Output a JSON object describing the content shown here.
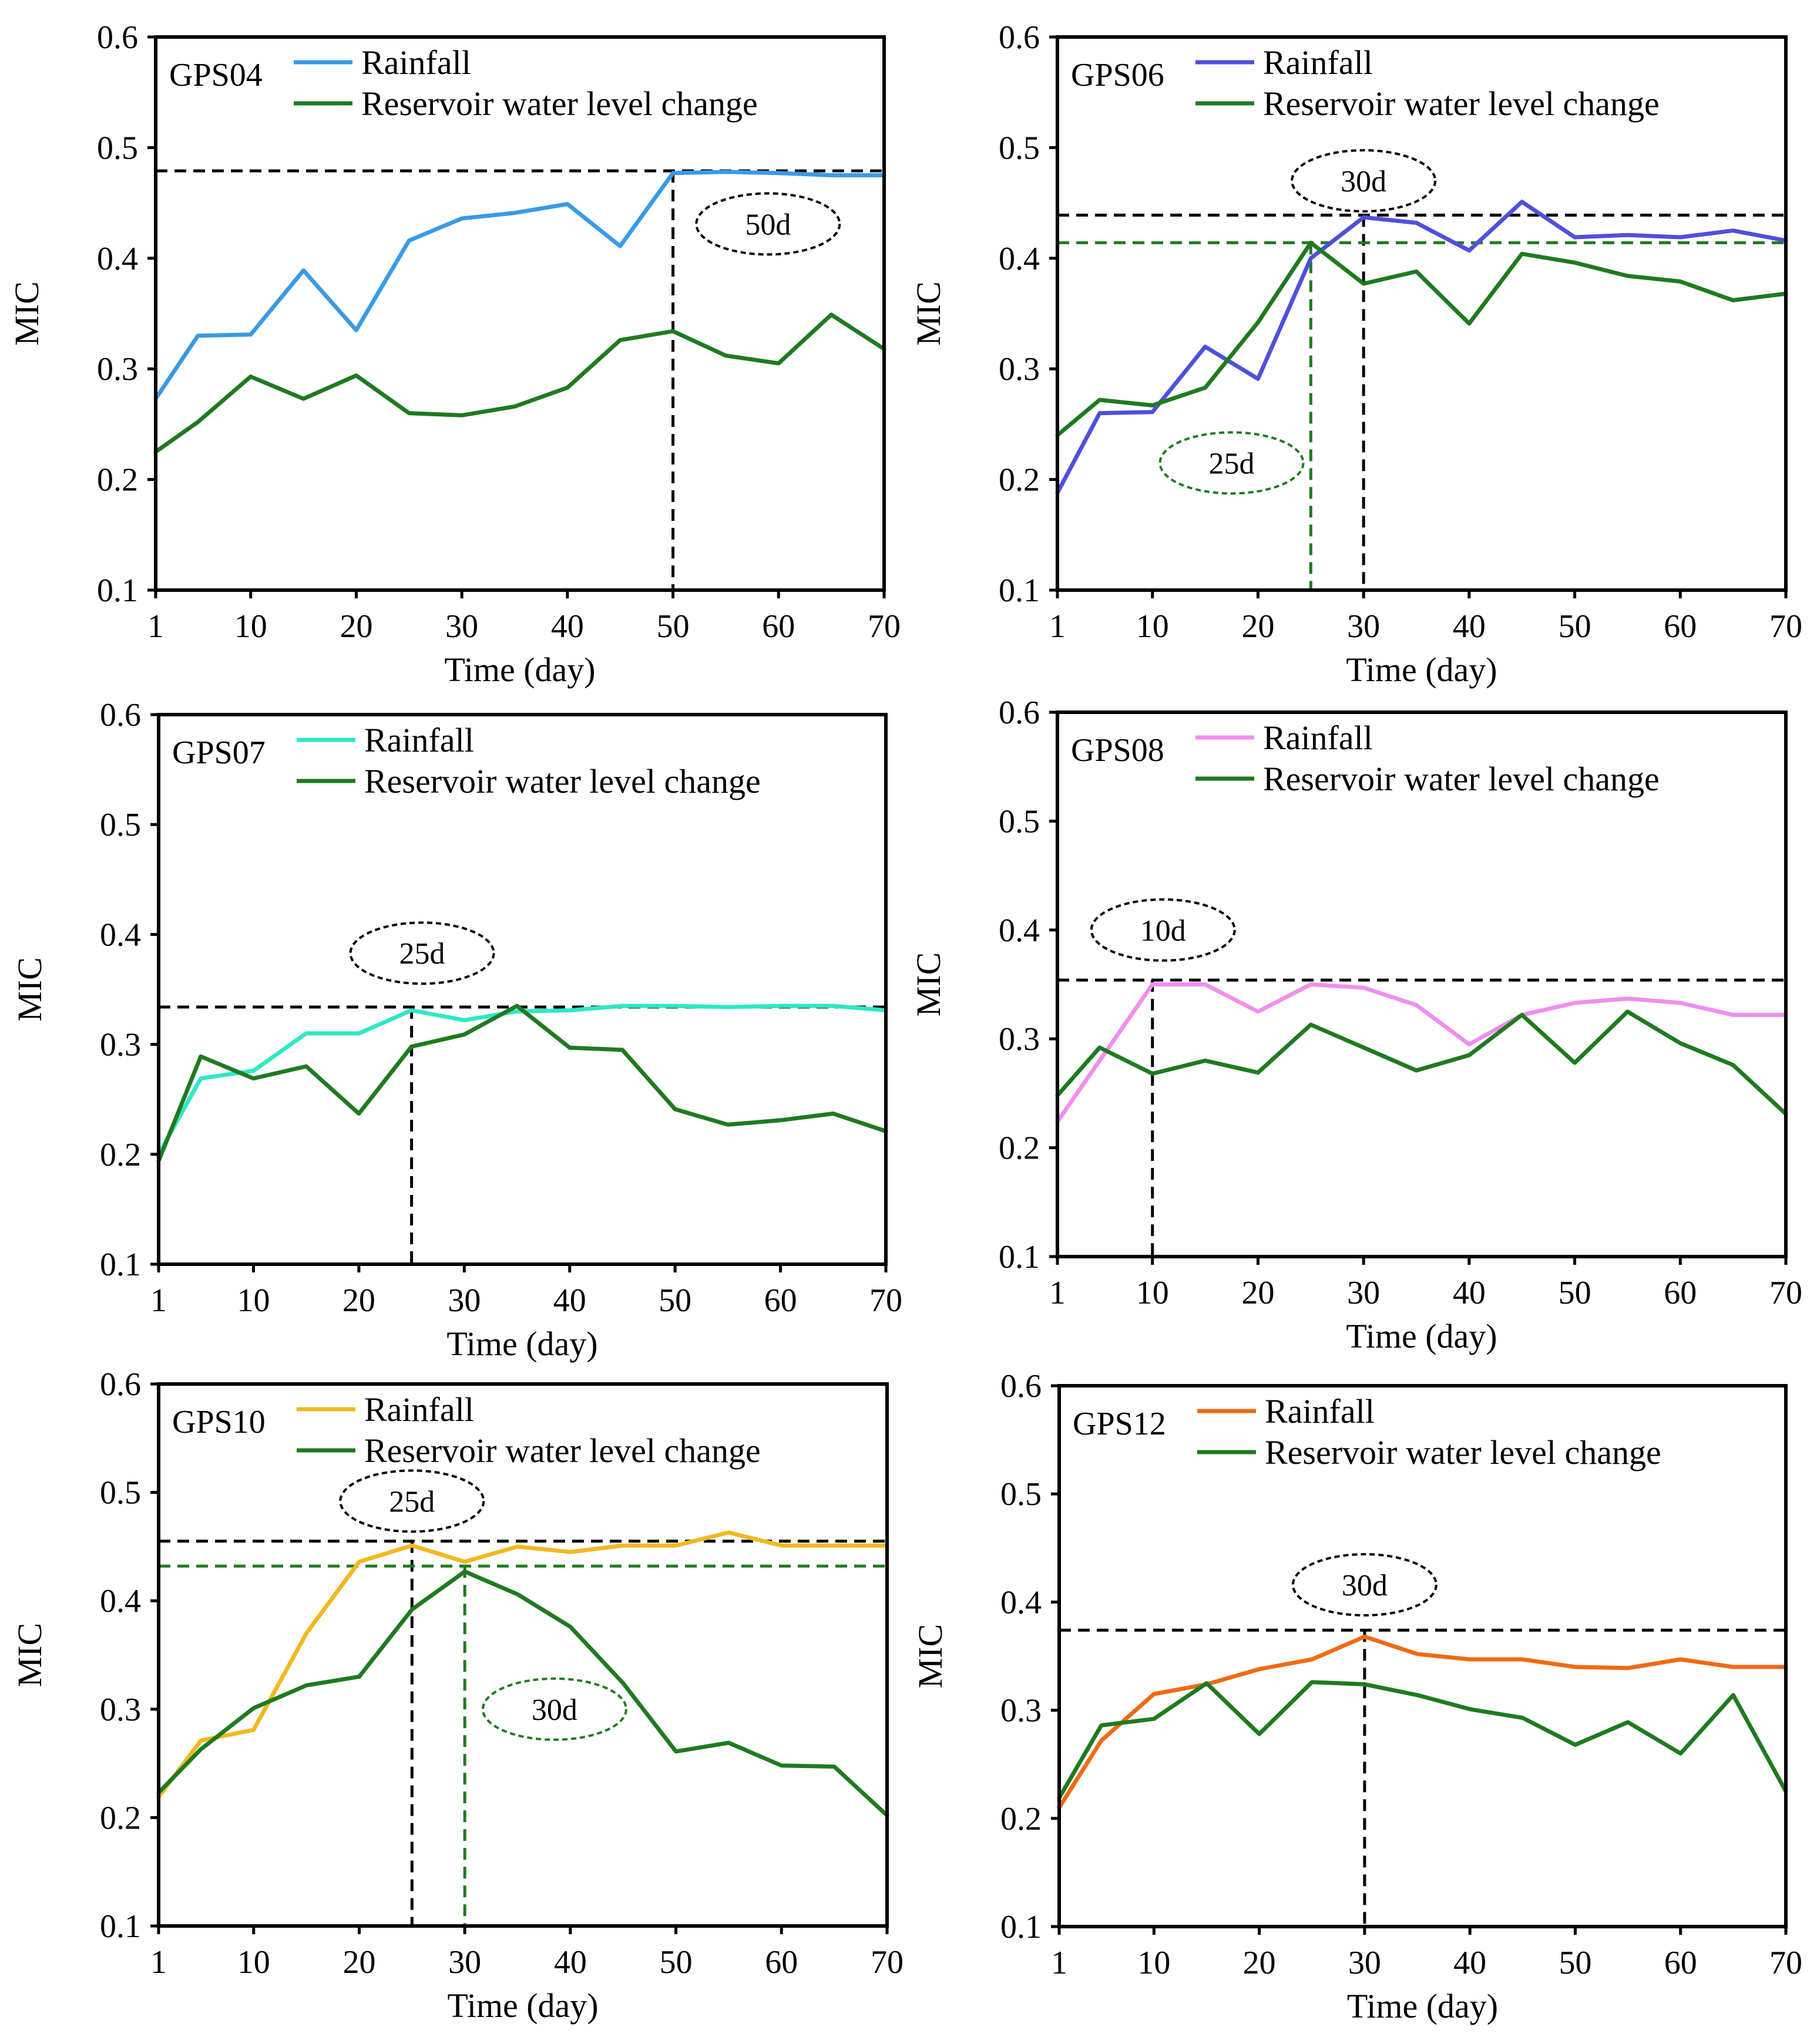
{
  "colors": {
    "axis": "#000000",
    "reservoir": "#1f7a1f",
    "ref_black": "#000000",
    "ref_green": "#1f7a1f"
  },
  "chart_data": [
    {
      "type": "line",
      "panel_label": "GPS04",
      "xlabel": "Time (day)",
      "ylabel": "MIC",
      "xlim": [
        1,
        70
      ],
      "ylim": [
        0.1,
        0.6
      ],
      "yticks": [
        "0.1",
        "0.2",
        "0.3",
        "0.4",
        "0.5",
        "0.6"
      ],
      "xticks": [
        {
          "v": 1,
          "label": "1"
        },
        {
          "v": 10,
          "label": "10"
        },
        {
          "v": 20,
          "label": "20"
        },
        {
          "v": 30,
          "label": "30"
        },
        {
          "v": 40,
          "label": "40"
        },
        {
          "v": 50,
          "label": "50"
        },
        {
          "v": 60,
          "label": "60"
        },
        {
          "v": 70,
          "label": "70"
        }
      ],
      "x": [
        1,
        5,
        10,
        15,
        20,
        25,
        30,
        35,
        40,
        45,
        50,
        55,
        60,
        65,
        70
      ],
      "series": [
        {
          "name": "Rainfall",
          "color": "#3a9ae6",
          "values": [
            0.273,
            0.33,
            0.331,
            0.389,
            0.335,
            0.416,
            0.436,
            0.441,
            0.449,
            0.411,
            0.477,
            0.478,
            0.477,
            0.475,
            0.475
          ]
        },
        {
          "name": "Reservoir water level change",
          "color": "#1f7a1f",
          "values": [
            0.225,
            0.252,
            0.293,
            0.273,
            0.294,
            0.26,
            0.258,
            0.266,
            0.283,
            0.326,
            0.334,
            0.312,
            0.305,
            0.349,
            0.318
          ]
        }
      ],
      "markers": [
        {
          "color": "black",
          "x": 50,
          "y": 0.479,
          "label": "50d",
          "label_x": 59,
          "label_y": 0.431
        }
      ]
    },
    {
      "type": "line",
      "panel_label": "GPS06",
      "xlabel": "Time (day)",
      "ylabel": "MIC",
      "xlim": [
        1,
        70
      ],
      "ylim": [
        0.1,
        0.6
      ],
      "yticks": [
        "0.1",
        "0.2",
        "0.3",
        "0.4",
        "0.5",
        "0.6"
      ],
      "xticks": [
        {
          "v": 1,
          "label": "1"
        },
        {
          "v": 10,
          "label": "10"
        },
        {
          "v": 20,
          "label": "20"
        },
        {
          "v": 30,
          "label": "30"
        },
        {
          "v": 40,
          "label": "40"
        },
        {
          "v": 50,
          "label": "50"
        },
        {
          "v": 60,
          "label": "60"
        },
        {
          "v": 70,
          "label": "70"
        }
      ],
      "x": [
        1,
        5,
        10,
        15,
        20,
        25,
        30,
        35,
        40,
        45,
        50,
        55,
        60,
        65,
        70
      ],
      "series": [
        {
          "name": "Rainfall",
          "color": "#4f4fdc",
          "values": [
            0.188,
            0.26,
            0.261,
            0.32,
            0.291,
            0.4,
            0.437,
            0.432,
            0.407,
            0.451,
            0.419,
            0.421,
            0.419,
            0.425,
            0.416
          ]
        },
        {
          "name": "Reservoir water level change",
          "color": "#1f7a1f",
          "values": [
            0.24,
            0.272,
            0.267,
            0.283,
            0.342,
            0.414,
            0.377,
            0.388,
            0.341,
            0.404,
            0.396,
            0.384,
            0.379,
            0.362,
            0.368
          ]
        }
      ],
      "markers": [
        {
          "color": "black",
          "x": 30,
          "y": 0.439,
          "label": "30d",
          "label_x": 30,
          "label_y": 0.47
        },
        {
          "color": "green",
          "x": 25,
          "y": 0.414,
          "label": "25d",
          "label_x": 17.5,
          "label_y": 0.215
        }
      ]
    },
    {
      "type": "line",
      "panel_label": "GPS07",
      "xlabel": "Time (day)",
      "ylabel": "MIC",
      "xlim": [
        1,
        70
      ],
      "ylim": [
        0.1,
        0.6
      ],
      "yticks": [
        "0.1",
        "0.2",
        "0.3",
        "0.4",
        "0.5",
        "0.6"
      ],
      "xticks": [
        {
          "v": 1,
          "label": "1"
        },
        {
          "v": 10,
          "label": "10"
        },
        {
          "v": 20,
          "label": "20"
        },
        {
          "v": 30,
          "label": "30"
        },
        {
          "v": 40,
          "label": "40"
        },
        {
          "v": 50,
          "label": "50"
        },
        {
          "v": 60,
          "label": "60"
        },
        {
          "v": 70,
          "label": "70"
        }
      ],
      "x": [
        1,
        5,
        10,
        15,
        20,
        25,
        30,
        35,
        40,
        45,
        50,
        55,
        60,
        65,
        70
      ],
      "series": [
        {
          "name": "Rainfall",
          "color": "#2ee8c4",
          "values": [
            0.2,
            0.269,
            0.276,
            0.31,
            0.31,
            0.331,
            0.322,
            0.33,
            0.331,
            0.335,
            0.335,
            0.334,
            0.335,
            0.335,
            0.331
          ]
        },
        {
          "name": "Reservoir water level change",
          "color": "#1f7a1f",
          "values": [
            0.194,
            0.289,
            0.269,
            0.28,
            0.237,
            0.298,
            0.309,
            0.335,
            0.297,
            0.295,
            0.241,
            0.227,
            0.231,
            0.237,
            0.221
          ]
        }
      ],
      "markers": [
        {
          "color": "black",
          "x": 25,
          "y": 0.334,
          "label": "25d",
          "label_x": 26,
          "label_y": 0.383
        }
      ]
    },
    {
      "type": "line",
      "panel_label": "GPS08",
      "xlabel": "Time (day)",
      "ylabel": "MIC",
      "xlim": [
        1,
        70
      ],
      "ylim": [
        0.1,
        0.6
      ],
      "yticks": [
        "0.1",
        "0.2",
        "0.3",
        "0.4",
        "0.5",
        "0.6"
      ],
      "xticks": [
        {
          "v": 1,
          "label": "1"
        },
        {
          "v": 10,
          "label": "10"
        },
        {
          "v": 20,
          "label": "20"
        },
        {
          "v": 30,
          "label": "30"
        },
        {
          "v": 40,
          "label": "40"
        },
        {
          "v": 50,
          "label": "50"
        },
        {
          "v": 60,
          "label": "60"
        },
        {
          "v": 70,
          "label": "70"
        }
      ],
      "x": [
        1,
        5,
        10,
        15,
        20,
        25,
        30,
        35,
        40,
        45,
        50,
        55,
        60,
        65,
        70
      ],
      "series": [
        {
          "name": "Rainfall",
          "color": "#f08ef0",
          "values": [
            0.224,
            0.28,
            0.35,
            0.35,
            0.325,
            0.35,
            0.347,
            0.331,
            0.295,
            0.322,
            0.333,
            0.337,
            0.333,
            0.322,
            0.322
          ]
        },
        {
          "name": "Reservoir water level change",
          "color": "#1f7a1f",
          "values": [
            0.248,
            0.292,
            0.268,
            0.28,
            0.269,
            0.313,
            0.292,
            0.271,
            0.285,
            0.322,
            0.278,
            0.325,
            0.296,
            0.276,
            0.231
          ]
        }
      ],
      "markers": [
        {
          "color": "black",
          "x": 10,
          "y": 0.354,
          "label": "10d",
          "label_x": 11,
          "label_y": 0.4
        }
      ]
    },
    {
      "type": "line",
      "panel_label": "GPS10",
      "xlabel": "Time (day)",
      "ylabel": "MIC",
      "xlim": [
        1,
        70
      ],
      "ylim": [
        0.1,
        0.6
      ],
      "yticks": [
        "0.1",
        "0.2",
        "0.3",
        "0.4",
        "0.5",
        "0.6"
      ],
      "xticks": [
        {
          "v": 1,
          "label": "1"
        },
        {
          "v": 10,
          "label": "10"
        },
        {
          "v": 20,
          "label": "20"
        },
        {
          "v": 30,
          "label": "30"
        },
        {
          "v": 40,
          "label": "40"
        },
        {
          "v": 50,
          "label": "50"
        },
        {
          "v": 60,
          "label": "60"
        },
        {
          "v": 70,
          "label": "70"
        }
      ],
      "x": [
        1,
        5,
        10,
        15,
        20,
        25,
        30,
        35,
        40,
        45,
        50,
        55,
        60,
        65,
        70
      ],
      "series": [
        {
          "name": "Rainfall",
          "color": "#f2b820",
          "values": [
            0.219,
            0.271,
            0.281,
            0.37,
            0.436,
            0.451,
            0.436,
            0.45,
            0.445,
            0.451,
            0.451,
            0.463,
            0.451,
            0.451,
            0.451
          ]
        },
        {
          "name": "Reservoir water level change",
          "color": "#1f7a1f",
          "values": [
            0.223,
            0.263,
            0.301,
            0.322,
            0.33,
            0.392,
            0.427,
            0.406,
            0.376,
            0.324,
            0.261,
            0.269,
            0.248,
            0.247,
            0.202
          ]
        }
      ],
      "markers": [
        {
          "color": "black",
          "x": 25,
          "y": 0.455,
          "label": "25d",
          "label_x": 25,
          "label_y": 0.492
        },
        {
          "color": "green",
          "x": 30,
          "y": 0.432,
          "label": "30d",
          "label_x": 38.5,
          "label_y": 0.3
        }
      ]
    },
    {
      "type": "line",
      "panel_label": "GPS12",
      "xlabel": "Time (day)",
      "ylabel": "MIC",
      "xlim": [
        1,
        70
      ],
      "ylim": [
        0.1,
        0.6
      ],
      "yticks": [
        "0.1",
        "0.2",
        "0.3",
        "0.4",
        "0.5",
        "0.6"
      ],
      "xticks": [
        {
          "v": 1,
          "label": "1"
        },
        {
          "v": 10,
          "label": "10"
        },
        {
          "v": 20,
          "label": "20"
        },
        {
          "v": 30,
          "label": "30"
        },
        {
          "v": 40,
          "label": "40"
        },
        {
          "v": 50,
          "label": "50"
        },
        {
          "v": 60,
          "label": "60"
        },
        {
          "v": 70,
          "label": "70"
        }
      ],
      "x": [
        1,
        5,
        10,
        15,
        20,
        25,
        30,
        35,
        40,
        45,
        50,
        55,
        60,
        65,
        70
      ],
      "series": [
        {
          "name": "Rainfall",
          "color": "#f06a14",
          "values": [
            0.21,
            0.272,
            0.315,
            0.324,
            0.338,
            0.347,
            0.368,
            0.352,
            0.347,
            0.347,
            0.34,
            0.339,
            0.347,
            0.34,
            0.34
          ]
        },
        {
          "name": "Reservoir water level change",
          "color": "#1f7a1f",
          "values": [
            0.219,
            0.286,
            0.292,
            0.325,
            0.278,
            0.326,
            0.324,
            0.314,
            0.301,
            0.293,
            0.268,
            0.289,
            0.26,
            0.314,
            0.225
          ]
        }
      ],
      "markers": [
        {
          "color": "black",
          "x": 30,
          "y": 0.374,
          "label": "30d",
          "label_x": 30,
          "label_y": 0.416
        }
      ]
    }
  ]
}
